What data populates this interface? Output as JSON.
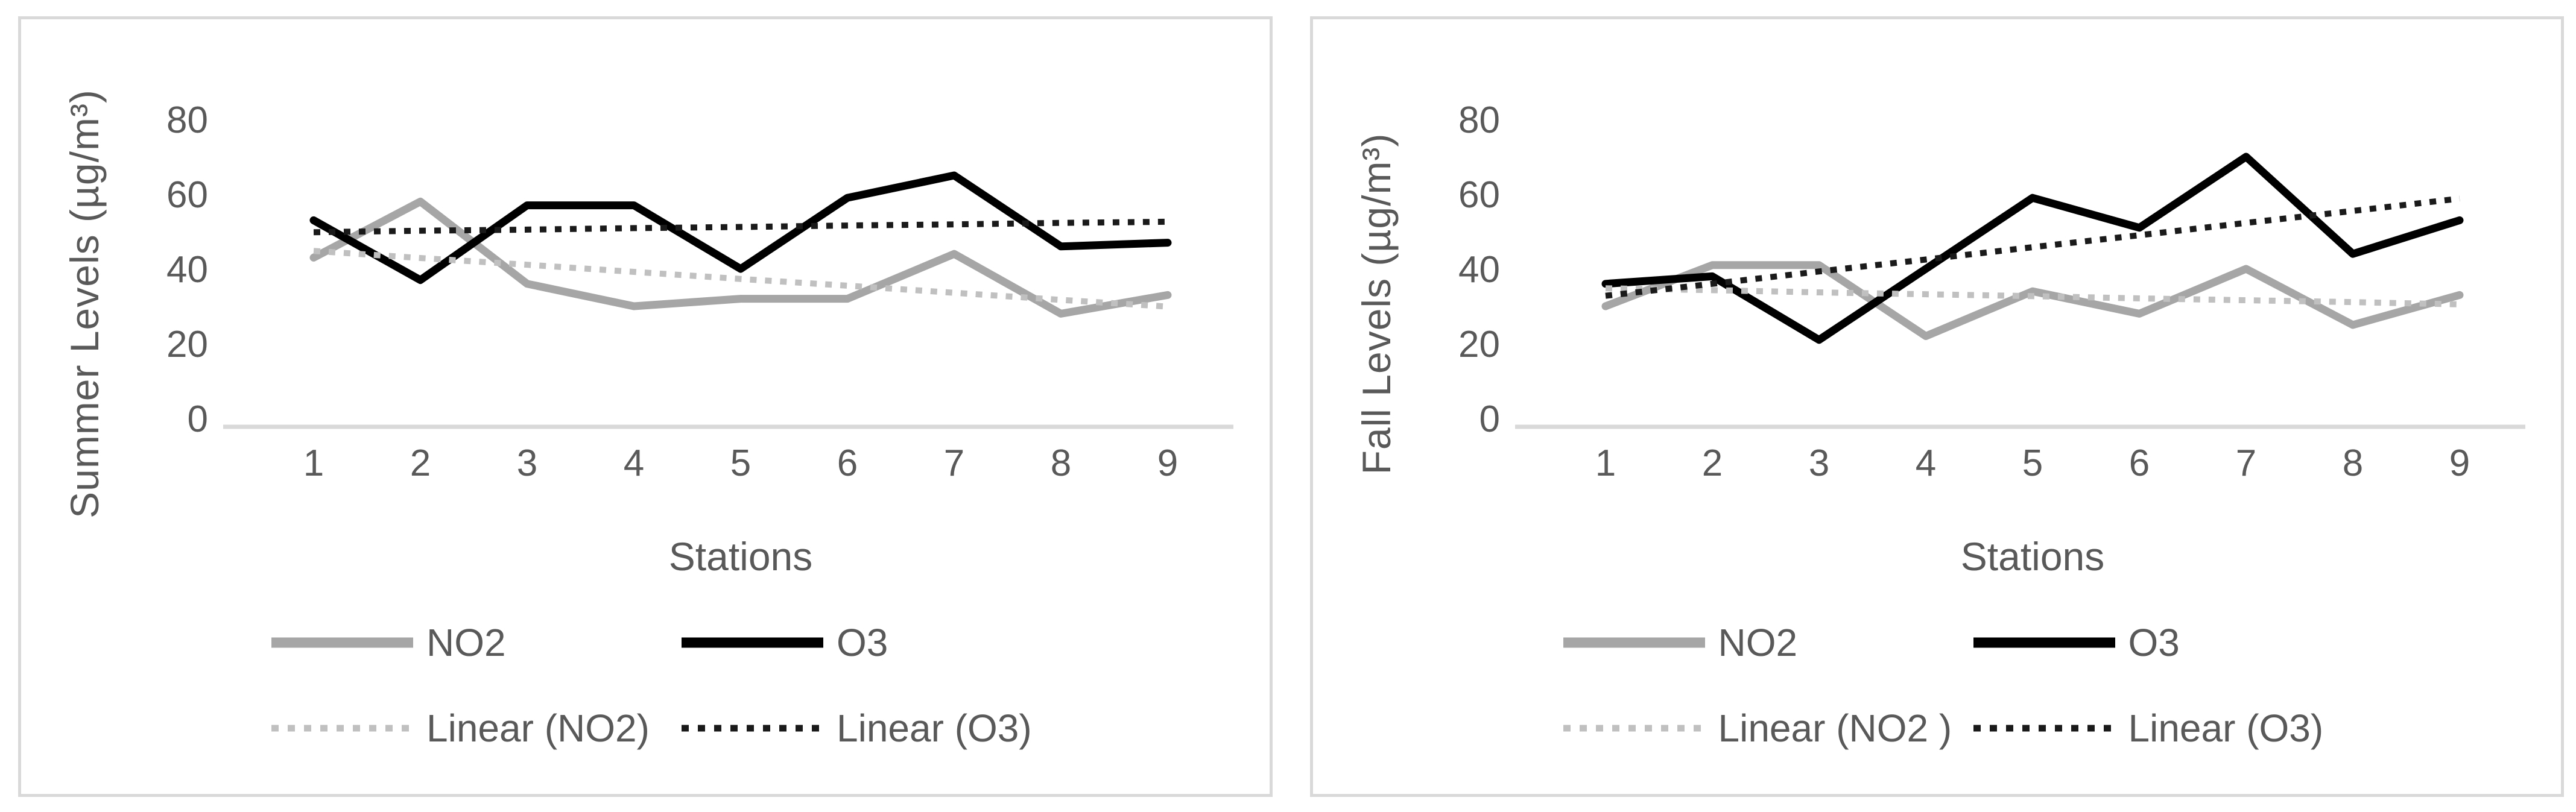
{
  "page": {
    "background": "#ffffff",
    "panel_border_color": "#d9d9d9"
  },
  "style": {
    "axis_line_color": "#d9d9d9",
    "text_color": "#595959",
    "tick_font_px": 62,
    "axis_title_font_px": 66
  },
  "chart_data": [
    {
      "id": "summer",
      "type": "line",
      "title": "",
      "xlabel": "Stations",
      "ylabel": "Summer Levels (µg/m³)",
      "x": [
        1,
        2,
        3,
        4,
        5,
        6,
        7,
        8,
        9
      ],
      "yticks": [
        0,
        20,
        40,
        60,
        80
      ],
      "ylim": [
        0,
        80
      ],
      "grid": false,
      "legend_position": "bottom",
      "series": [
        {
          "name": "NO2",
          "style": "solid",
          "color": "#a6a6a6",
          "values": [
            43,
            58,
            36,
            30,
            32,
            32,
            44,
            28,
            33
          ]
        },
        {
          "name": "O3",
          "style": "solid",
          "color": "#000000",
          "values": [
            53,
            37,
            57,
            57,
            40,
            59,
            65,
            46,
            47
          ]
        },
        {
          "name": "Linear (NO2)",
          "style": "dotted",
          "color": "#c0c0c0",
          "values": [
            44.8,
            42.9,
            41.1,
            39.2,
            37.3,
            35.5,
            33.6,
            31.7,
            29.9
          ]
        },
        {
          "name": "Linear (O3)",
          "style": "dotted",
          "color": "#1a1a1a",
          "values": [
            49.8,
            50.2,
            50.5,
            50.9,
            51.2,
            51.6,
            51.9,
            52.3,
            52.6
          ]
        }
      ]
    },
    {
      "id": "fall",
      "type": "line",
      "title": "",
      "xlabel": "Stations",
      "ylabel": "Fall Levels (µg/m³)",
      "x": [
        1,
        2,
        3,
        4,
        5,
        6,
        7,
        8,
        9
      ],
      "yticks": [
        0,
        20,
        40,
        60,
        80
      ],
      "ylim": [
        0,
        80
      ],
      "grid": false,
      "legend_position": "bottom",
      "series": [
        {
          "name": "NO2",
          "style": "solid",
          "color": "#a6a6a6",
          "values": [
            30,
            41,
            41,
            22,
            34,
            28,
            40,
            25,
            33
          ]
        },
        {
          "name": "O3",
          "style": "solid",
          "color": "#000000",
          "values": [
            36,
            38,
            21,
            40,
            59,
            51,
            70,
            44,
            53
          ]
        },
        {
          "name": "Linear (NO2 )",
          "style": "dotted",
          "color": "#c0c0c0",
          "values": [
            34.8,
            34.3,
            33.7,
            33.2,
            32.7,
            32.1,
            31.6,
            31.1,
            30.5
          ]
        },
        {
          "name": "Linear (O3)",
          "style": "dotted",
          "color": "#1a1a1a",
          "values": [
            32.8,
            36.0,
            39.3,
            42.5,
            45.8,
            49.0,
            52.3,
            55.5,
            58.8
          ]
        }
      ]
    }
  ]
}
